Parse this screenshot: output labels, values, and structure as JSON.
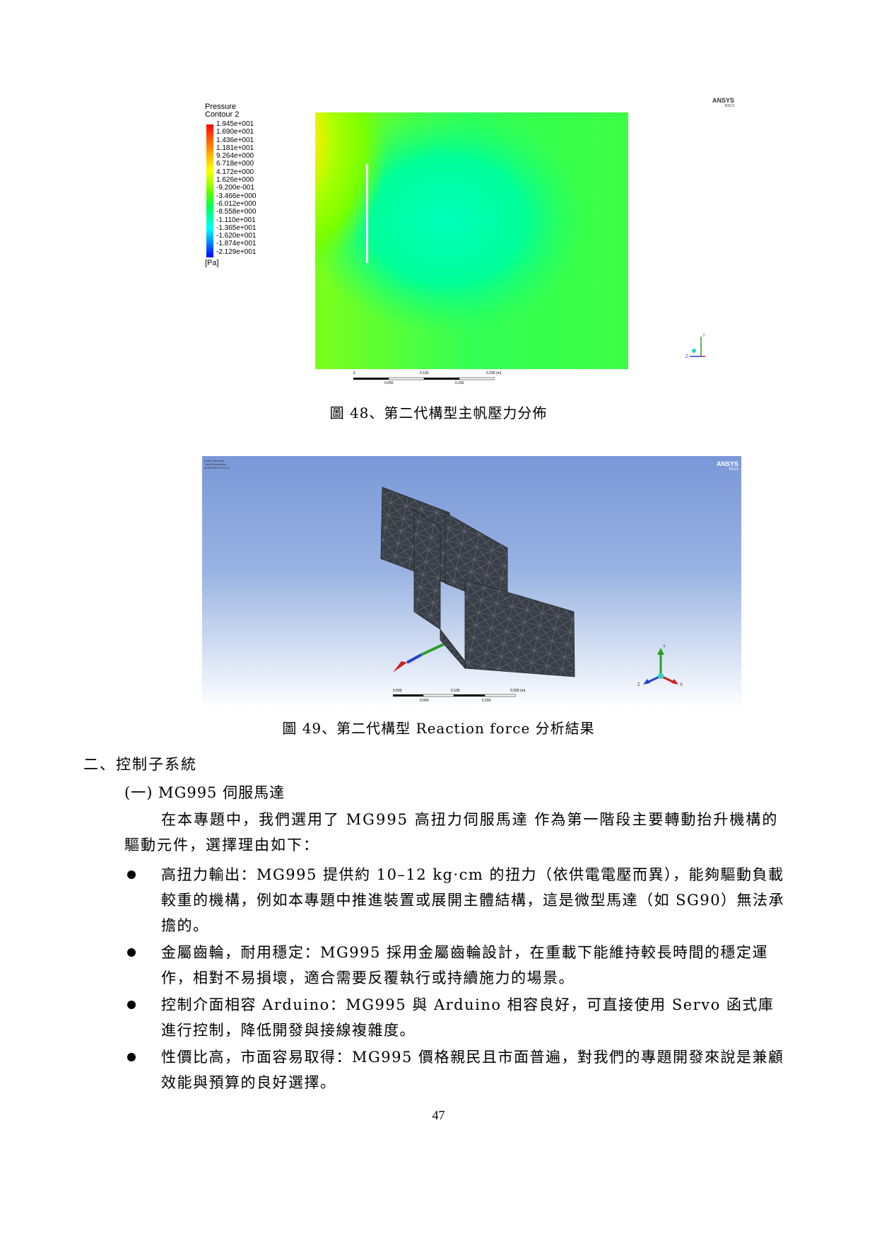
{
  "figure48": {
    "legend_title_line1": "Pressure",
    "legend_title_line2": "Contour 2",
    "legend_values": [
      "1.945e+001",
      "1.690e+001",
      "1.436e+001",
      "1.181e+001",
      "9.264e+000",
      "6.718e+000",
      "4.172e+000",
      "1.626e+000",
      "-9.200e-001",
      "-3.466e+000",
      "-6.012e+000",
      "-8.558e+000",
      "-1.110e+001",
      "-1.365e+001",
      "-1.620e+001",
      "-1.874e+001",
      "-2.129e+001"
    ],
    "legend_unit": "[Pa]",
    "logo": "ANSYS",
    "logo_version": "R15.0",
    "scale_top": [
      "0",
      "0.100",
      "0.200 (m)"
    ],
    "scale_bottom": [
      "0.050",
      "0.150"
    ],
    "axis_y_label": "Y",
    "axis_z_label": "Z",
    "caption": "圖 48、第二代構型主帆壓力分佈",
    "colors": {
      "high": "#ff3300",
      "mid": "#66ff00",
      "low": "#00ffaa"
    }
  },
  "figure49": {
    "header_lines": [
      "Static Structural",
      "Total Deformation",
      "5/25/2025 PM 12:31"
    ],
    "logo": "ANSYS",
    "logo_version": "R15.0",
    "scale_top": [
      "0.000",
      "0.100",
      "0.200 (m)"
    ],
    "scale_bottom": [
      "0.050",
      "0.150"
    ],
    "axis_labels": [
      "Y",
      "X",
      "Z"
    ],
    "caption": "圖 49、第二代構型 Reaction force 分析結果",
    "colors": {
      "background_top": "#7a98d8",
      "mesh_fill": "#3a3f47",
      "mesh_line": "#6b7380"
    }
  },
  "body": {
    "heading": "二、控制子系統",
    "subheading": "(一) MG995 伺服馬達",
    "intro": "在本專題中，我們選用了 MG995 高扭力伺服馬達 作為第一階段主要轉動抬升機構的驅動元件，選擇理由如下：",
    "bullets": [
      "高扭力輸出：MG995 提供約 10–12 kg·cm 的扭力（依供電電壓而異），能夠驅動負載較重的機構，例如本專題中推進裝置或展開主體結構，這是微型馬達（如 SG90）無法承擔的。",
      "金屬齒輪，耐用穩定：MG995 採用金屬齒輪設計，在重載下能維持較長時間的穩定運作，相對不易損壞，適合需要反覆執行或持續施力的場景。",
      "控制介面相容 Arduino：MG995 與 Arduino 相容良好，可直接使用 Servo 函式庫進行控制，降低開發與接線複雜度。",
      "性價比高，市面容易取得：MG995 價格親民且市面普遍，對我們的專題開發來說是兼顧效能與預算的良好選擇。"
    ],
    "page_number": "47"
  }
}
